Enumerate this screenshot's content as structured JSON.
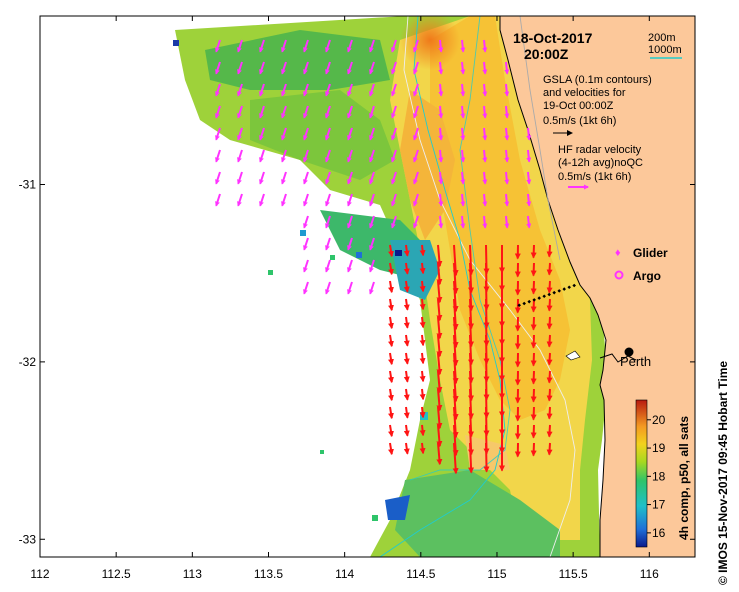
{
  "map": {
    "title_date": "18-Oct-2017",
    "title_time": "20:00Z",
    "region": "Perth, Western Australia",
    "depth_contours": {
      "label_200": "200m",
      "label_1000": "1000m",
      "color_200": "#9a9a9a",
      "color_1000": "#22cccc"
    },
    "gsla_note": [
      "GSLA (0.1m contours)",
      "and velocities for",
      "19-Oct 00:00Z",
      "0.5m/s (1kt 6h)"
    ],
    "hf_note": [
      "HF radar velocity",
      "(4-12h avg)noQC",
      "0.5m/s (1kt 6h)"
    ],
    "legend": {
      "glider": "Glider",
      "argo": "Argo",
      "glider_color": "#ff33ff",
      "argo_color": "#ff33ff"
    },
    "city": {
      "name": "Perth",
      "lon": 115.86,
      "lat": -31.95
    },
    "colorbar": {
      "label": "4h comp, p50, all sats",
      "ticks": [
        "16",
        "17",
        "18",
        "19",
        "20"
      ],
      "min": 15.5,
      "max": 20.7
    },
    "credit": "© IMOS 15-Nov-2017 09:45 Hobart Time",
    "x_axis": {
      "min": 112,
      "max": 116.3,
      "ticks": [
        "112",
        "112.5",
        "113",
        "113.5",
        "114",
        "114.5",
        "115",
        "115.5",
        "116"
      ]
    },
    "y_axis": {
      "min": -33.1,
      "max": -30.05,
      "ticks": [
        "-31",
        "-32",
        "-33"
      ]
    },
    "colors": {
      "land": "#fcc89a",
      "coast": "#000000",
      "current_arrow": "#ff1414",
      "hf_arrow": "#ff33ff",
      "gsla_arrow": "#000000"
    }
  }
}
